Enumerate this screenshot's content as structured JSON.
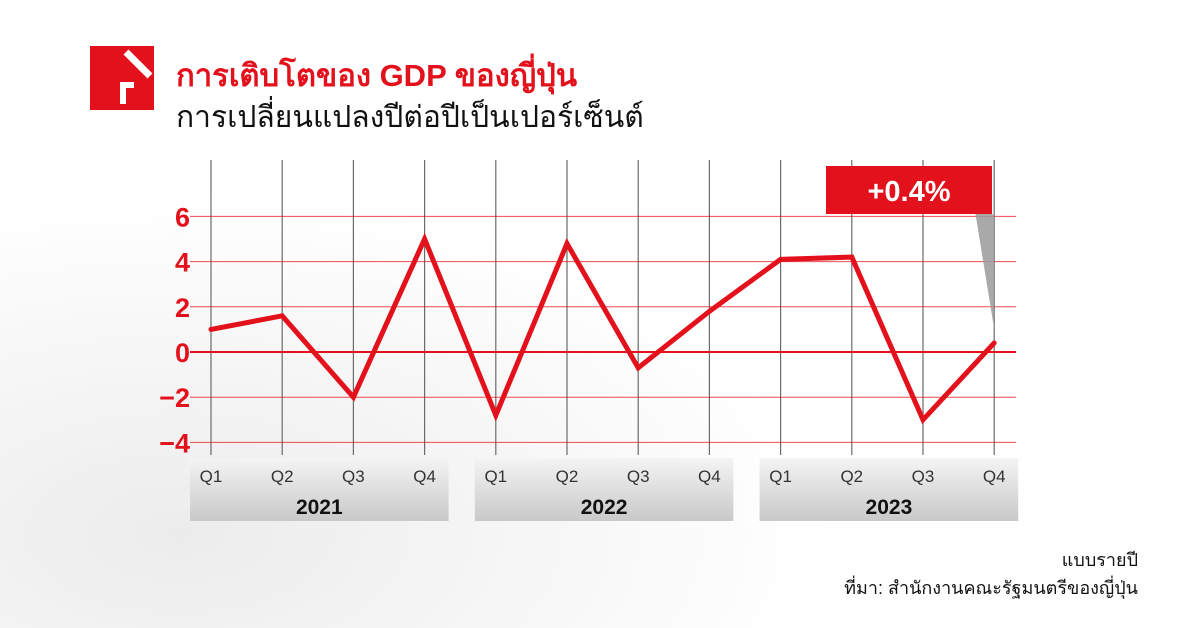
{
  "header": {
    "title": "การเติบโตของ GDP ของญี่ปุ่น",
    "subtitle": "การเปลี่ยนแปลงปีต่อปีเป็นเปอร์เซ็นต์"
  },
  "footer": {
    "note": "แบบรายปี",
    "source": "ที่มา: สำนักงานคณะรัฐมนตรีของญี่ปุ่น"
  },
  "colors": {
    "accent": "#e3111b",
    "grid": "#e3111b",
    "dark": "#111111"
  },
  "chart_data": {
    "type": "line",
    "categories": [
      "Q1",
      "Q2",
      "Q3",
      "Q4",
      "Q1",
      "Q2",
      "Q3",
      "Q4",
      "Q1",
      "Q2",
      "Q3",
      "Q4"
    ],
    "years": [
      {
        "label": "2021",
        "quarters": 4
      },
      {
        "label": "2022",
        "quarters": 4
      },
      {
        "label": "2023",
        "quarters": 4
      }
    ],
    "series": [
      {
        "values": [
          1.0,
          1.6,
          -2.0,
          5.0,
          -2.8,
          4.8,
          -0.7,
          1.8,
          4.1,
          4.2,
          -3.0,
          0.4
        ]
      }
    ],
    "yticks": [
      6,
      4,
      2,
      0,
      -2,
      -4
    ],
    "ylim": [
      -4,
      6
    ],
    "callout": {
      "label": "+0.4%",
      "index": 11
    },
    "grid": true
  }
}
